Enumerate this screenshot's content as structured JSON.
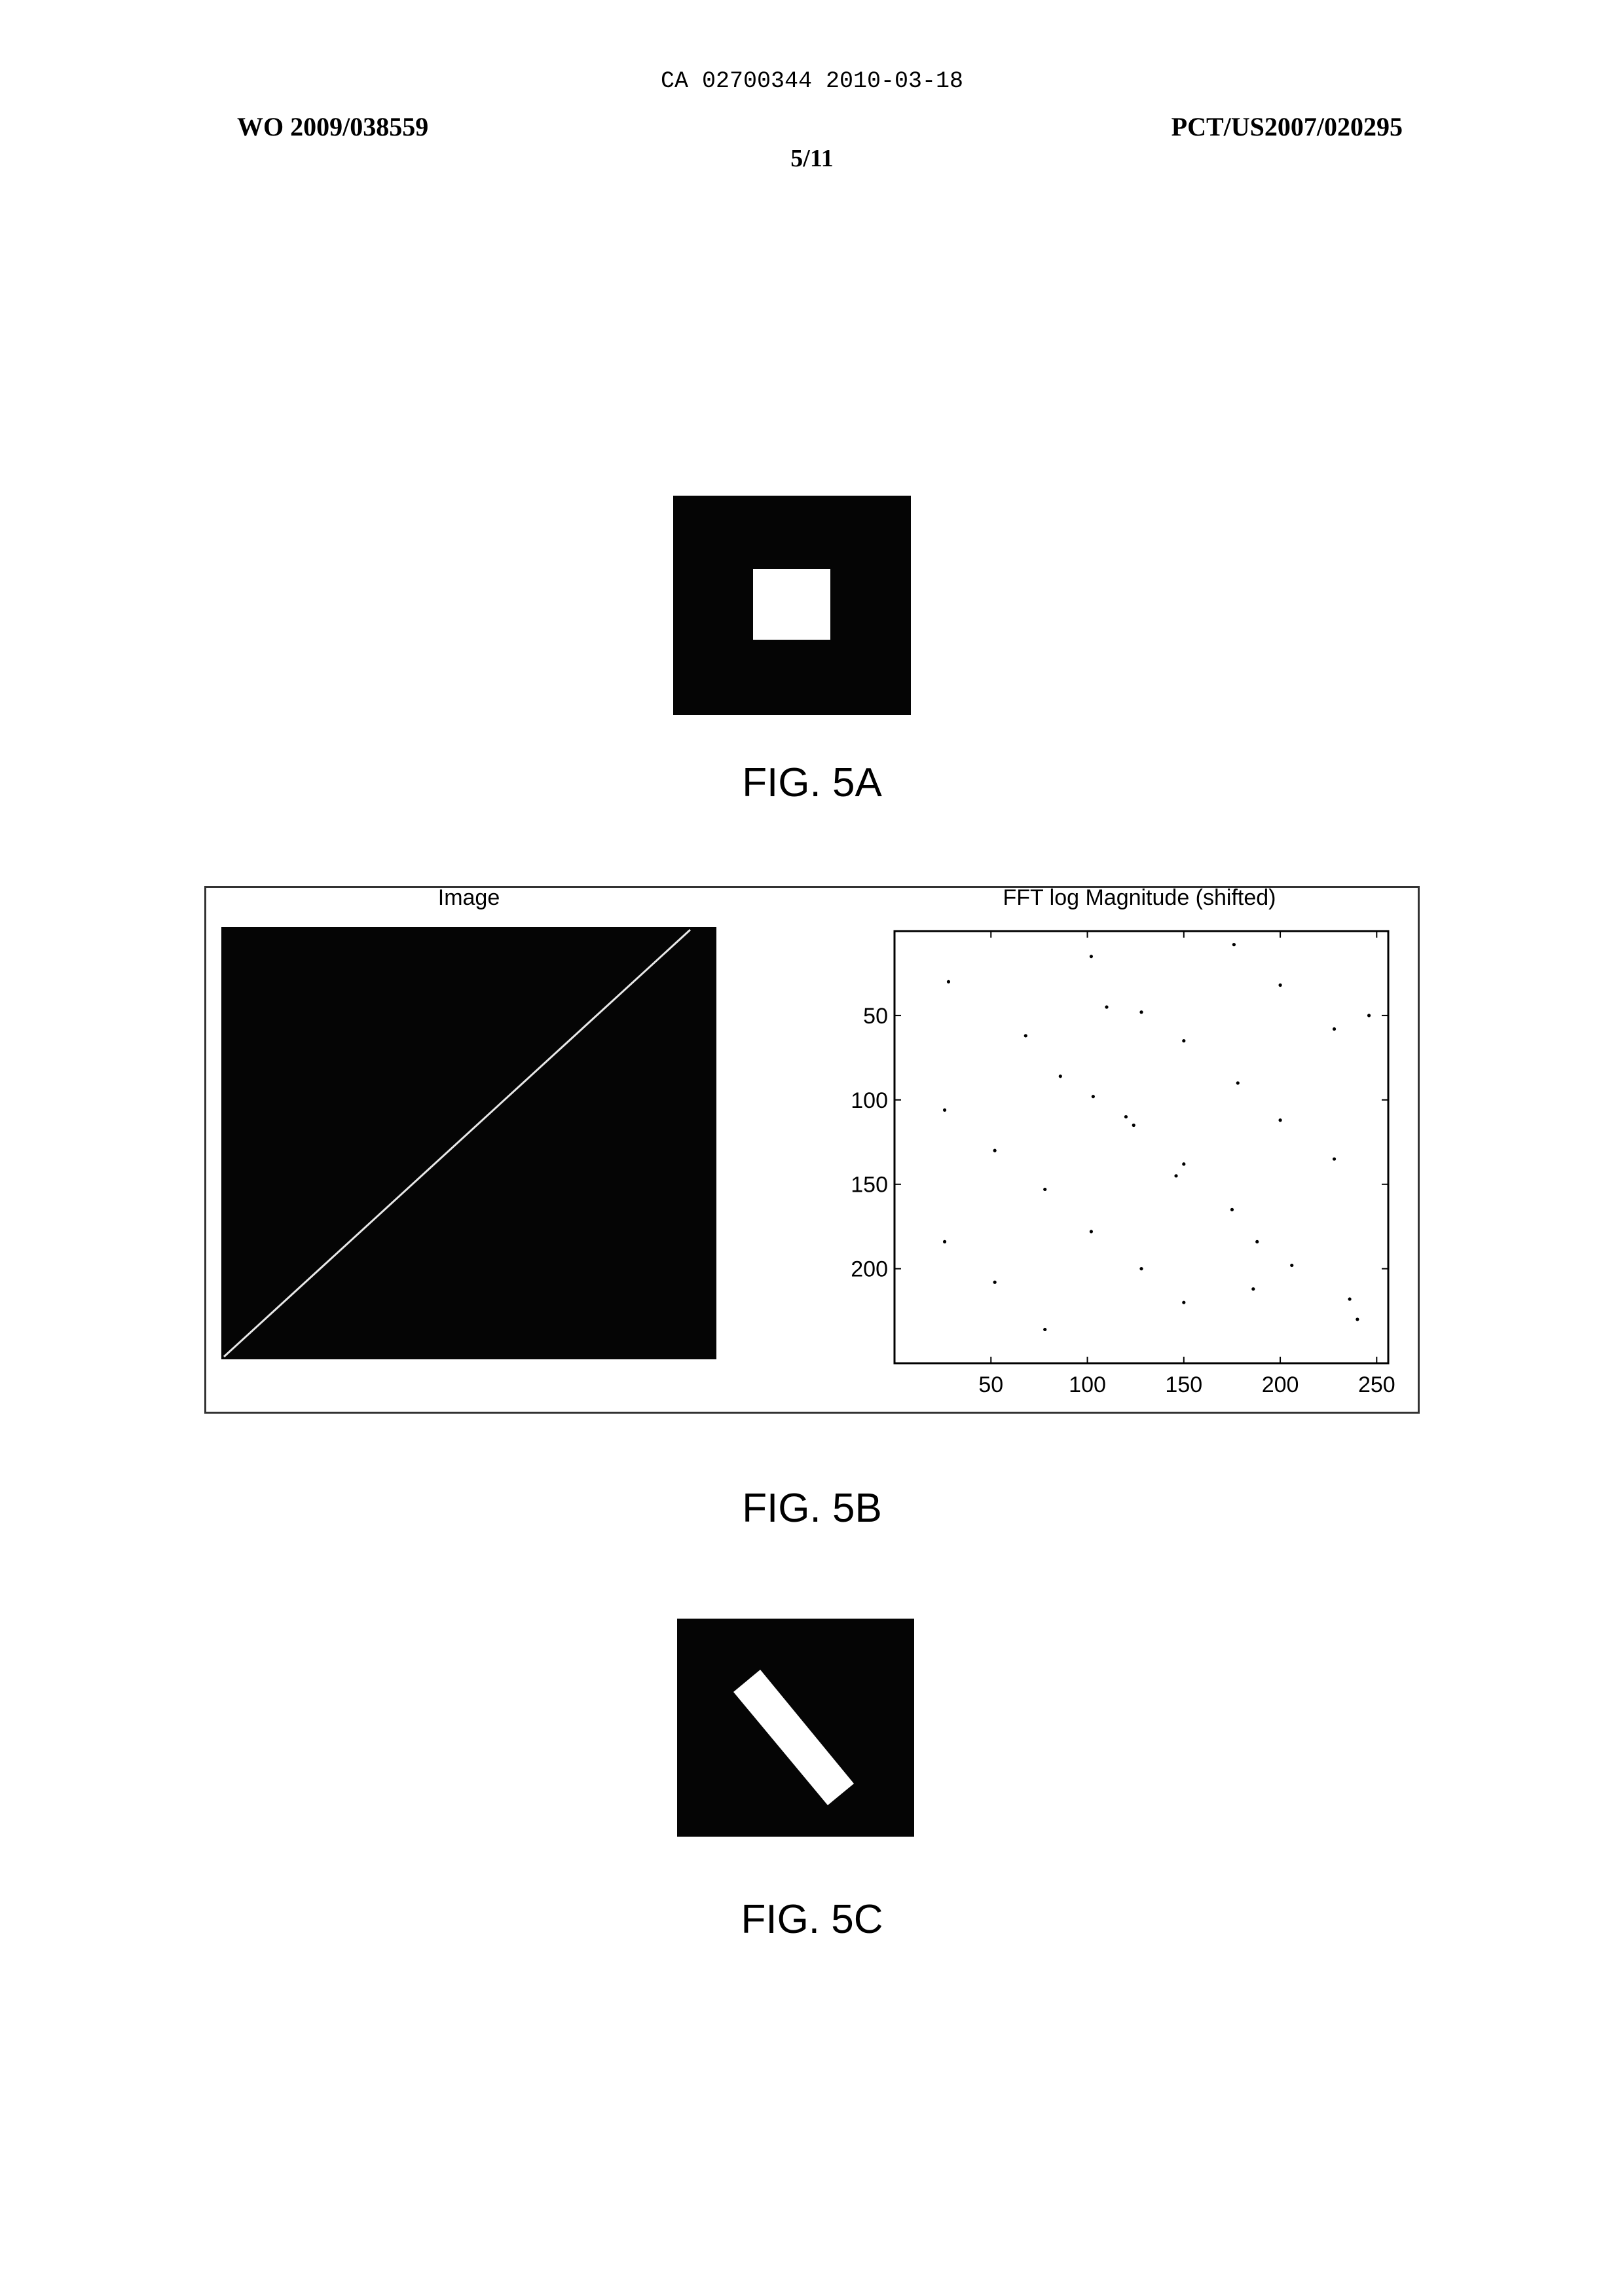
{
  "header": {
    "ca_line": "CA 02700344 2010-03-18",
    "publication_number": "WO 2009/038559",
    "application_number": "PCT/US2007/020295",
    "page_number": "5/11"
  },
  "figures": {
    "fig_5a": {
      "caption": "FIG. 5A"
    },
    "fig_5b": {
      "caption": "FIG. 5B",
      "left_panel_title": "Image",
      "right_panel_title": "FFT log Magnitude (shifted)"
    },
    "fig_5c": {
      "caption": "FIG. 5C"
    }
  },
  "chart_data": {
    "type": "scatter",
    "title": "FFT log Magnitude (shifted)",
    "xlabel": "",
    "ylabel": "",
    "xlim": [
      0,
      256
    ],
    "ylim": [
      0,
      256
    ],
    "y_inverted": true,
    "xticks": [
      50,
      100,
      150,
      200,
      250
    ],
    "yticks": [
      50,
      100,
      150,
      200
    ],
    "x_tick_labels": [
      "50",
      "100",
      "150",
      "200",
      "250"
    ],
    "y_tick_labels": [
      "50",
      "100",
      "150",
      "200"
    ],
    "grid": false,
    "points": [
      [
        28,
        30
      ],
      [
        102,
        15
      ],
      [
        176,
        8
      ],
      [
        200,
        32
      ],
      [
        110,
        45
      ],
      [
        128,
        48
      ],
      [
        68,
        62
      ],
      [
        150,
        65
      ],
      [
        228,
        58
      ],
      [
        246,
        50
      ],
      [
        86,
        86
      ],
      [
        103,
        98
      ],
      [
        178,
        90
      ],
      [
        26,
        106
      ],
      [
        120,
        110
      ],
      [
        124,
        115
      ],
      [
        200,
        112
      ],
      [
        52,
        130
      ],
      [
        150,
        138
      ],
      [
        228,
        135
      ],
      [
        146,
        145
      ],
      [
        78,
        153
      ],
      [
        175,
        165
      ],
      [
        102,
        178
      ],
      [
        26,
        184
      ],
      [
        188,
        184
      ],
      [
        52,
        208
      ],
      [
        128,
        200
      ],
      [
        206,
        198
      ],
      [
        150,
        220
      ],
      [
        186,
        212
      ],
      [
        236,
        218
      ],
      [
        240,
        230
      ],
      [
        78,
        236
      ]
    ]
  }
}
